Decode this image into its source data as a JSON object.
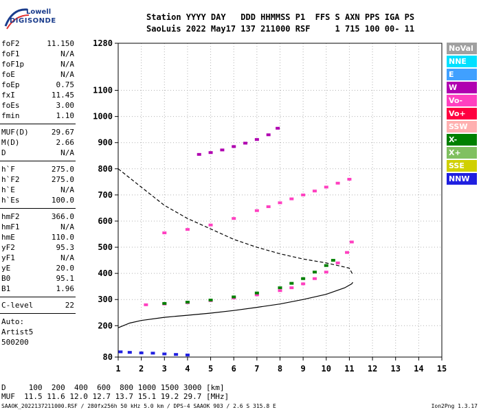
{
  "logo": {
    "top": "Lowell",
    "bottom": "DIGISONDE"
  },
  "header": {
    "line1": "Station YYYY DAY   DDD HHMMSS P1  FFS S AXN PPS IGA PS",
    "line2": "SaoLuis 2022 May17 137 211000 RSF     1 715 100 00- 11"
  },
  "params": [
    {
      "label": "foF2",
      "value": "11.150"
    },
    {
      "label": "foF1",
      "value": "N/A"
    },
    {
      "label": "foF1p",
      "value": "N/A"
    },
    {
      "label": "foE",
      "value": "N/A"
    },
    {
      "label": "foEp",
      "value": "0.75"
    },
    {
      "label": "fxI",
      "value": "11.45"
    },
    {
      "label": "foEs",
      "value": "3.00"
    },
    {
      "label": "fmin",
      "value": "1.10"
    },
    {
      "sep": true
    },
    {
      "label": "MUF(D)",
      "value": "29.67"
    },
    {
      "label": "M(D)",
      "value": "2.66"
    },
    {
      "label": "D",
      "value": "N/A"
    },
    {
      "sep": true
    },
    {
      "label": "h`F",
      "value": "275.0"
    },
    {
      "label": "h`F2",
      "value": "275.0"
    },
    {
      "label": "h`E",
      "value": "N/A"
    },
    {
      "label": "h`Es",
      "value": "100.0"
    },
    {
      "sep": true
    },
    {
      "label": "hmF2",
      "value": "366.0"
    },
    {
      "label": "hmF1",
      "value": "N/A"
    },
    {
      "label": "hmE",
      "value": "110.0"
    },
    {
      "label": "yF2",
      "value": "95.3"
    },
    {
      "label": "yF1",
      "value": "N/A"
    },
    {
      "label": "yE",
      "value": "20.0"
    },
    {
      "label": "B0",
      "value": "95.1"
    },
    {
      "label": "B1",
      "value": "1.96"
    },
    {
      "sep": true
    },
    {
      "label": "C-level",
      "value": "22"
    },
    {
      "sep": true
    },
    {
      "text": "Auto:"
    },
    {
      "text": "Artist5"
    },
    {
      "text": "500200"
    }
  ],
  "legend": [
    {
      "label": "NoVal",
      "color": "#a0a0a0"
    },
    {
      "label": "NNE",
      "color": "#00e0ff"
    },
    {
      "label": "E",
      "color": "#40a0ff"
    },
    {
      "label": "W",
      "color": "#b000b0"
    },
    {
      "label": "Vo-",
      "color": "#ff40c0"
    },
    {
      "label": "Vo+",
      "color": "#ff0040"
    },
    {
      "label": "SSW",
      "color": "#ffb0b0"
    },
    {
      "label": "X-",
      "color": "#008000"
    },
    {
      "label": "X+",
      "color": "#80c060"
    },
    {
      "label": "SSE",
      "color": "#d0d000"
    },
    {
      "label": "NNW",
      "color": "#2020e0"
    }
  ],
  "bottom": {
    "line1": "D     100  200  400  600  800 1000 1500 3000 [km]",
    "line2": "MUF  11.5 11.6 12.0 12.7 13.7 15.1 19.2 29.7 [MHz]"
  },
  "footer": {
    "left": "SAAOK_2022137211000.RSF / 280fx256h 50 kHz 5.0 km / DPS-4 SAAOK 903 / 2.6 S 315.8 E",
    "right": "Ion2Png 1.3.17"
  },
  "chart_data": {
    "type": "scatter",
    "title": "",
    "xlabel": "",
    "ylabel": "",
    "xlim": [
      1,
      15
    ],
    "ylim": [
      80,
      1280
    ],
    "x_ticks": [
      1,
      2,
      3,
      4,
      5,
      6,
      7,
      8,
      9,
      10,
      11,
      12,
      13,
      14,
      15
    ],
    "y_ticks": [
      80,
      200,
      300,
      400,
      500,
      600,
      700,
      800,
      900,
      1000,
      1100,
      1280
    ],
    "grid": true,
    "series": [
      {
        "style": "o-trace",
        "color": "#ff40c0",
        "x": [
          2.2,
          3.0,
          4.0,
          5.0,
          6.0,
          7.0,
          8.0,
          8.5,
          9.0,
          9.5,
          10.0,
          10.5,
          10.9,
          11.1
        ],
        "y": [
          280,
          283,
          288,
          296,
          306,
          318,
          334,
          345,
          360,
          380,
          405,
          440,
          480,
          520
        ]
      },
      {
        "style": "x-trace",
        "color": "#008000",
        "x": [
          3.0,
          4.0,
          5.0,
          6.0,
          7.0,
          8.0,
          8.5,
          9.0,
          9.5,
          10.0,
          10.3
        ],
        "y": [
          285,
          290,
          298,
          310,
          325,
          345,
          362,
          380,
          405,
          430,
          450
        ]
      },
      {
        "style": "second-hop",
        "color": "#ff40c0",
        "x": [
          3.0,
          4.0,
          5.0,
          6.0,
          7.0,
          7.5,
          8.0,
          8.5,
          9.0,
          9.5,
          10.0,
          10.5,
          11.0
        ],
        "y": [
          555,
          568,
          585,
          610,
          640,
          655,
          670,
          685,
          700,
          715,
          730,
          745,
          760
        ]
      },
      {
        "style": "third-hop",
        "color": "#b000b0",
        "x": [
          4.5,
          5.0,
          5.5,
          6.0,
          6.5,
          7.0,
          7.5,
          7.9
        ],
        "y": [
          855,
          862,
          872,
          885,
          898,
          912,
          930,
          955
        ]
      },
      {
        "style": "es-layer",
        "color": "#2020e0",
        "x": [
          1.1,
          1.5,
          2.0,
          2.5,
          3.0,
          3.5,
          4.0
        ],
        "y": [
          100,
          98,
          96,
          95,
          92,
          90,
          88
        ]
      }
    ],
    "profile": {
      "label": "electron density profile",
      "x": [
        1.0,
        1.5,
        2.0,
        3.0,
        4.0,
        5.0,
        6.0,
        7.0,
        8.0,
        9.0,
        10.0,
        10.8,
        11.1,
        11.15
      ],
      "y": [
        192,
        210,
        220,
        232,
        240,
        248,
        258,
        270,
        283,
        300,
        320,
        345,
        360,
        366
      ]
    },
    "profile_top": {
      "label": "topside profile (dashed)",
      "x": [
        1.0,
        2.0,
        3.0,
        4.0,
        5.0,
        6.0,
        7.0,
        8.0,
        9.0,
        10.0,
        11.0,
        11.15
      ],
      "y": [
        800,
        730,
        660,
        610,
        570,
        530,
        500,
        475,
        455,
        440,
        420,
        395
      ]
    }
  }
}
